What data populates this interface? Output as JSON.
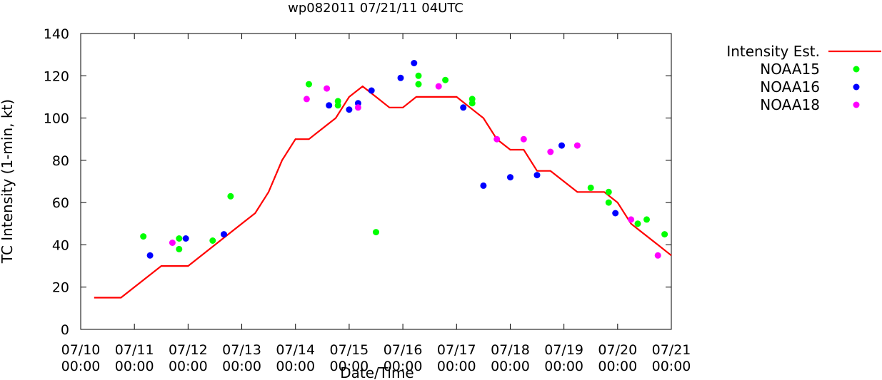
{
  "chart_data": {
    "type": "line",
    "title": "wp082011 07/21/11 04UTC",
    "xlabel": "Date/Time",
    "ylabel": "TC Intensity (1-min, kt)",
    "ylim": [
      0,
      140
    ],
    "yticks": [
      0,
      20,
      40,
      60,
      80,
      100,
      120,
      140
    ],
    "xlim": [
      "07/10 00:00",
      "07/21 00:00"
    ],
    "xticks": [
      {
        "line1": "07/10",
        "line2": "00:00"
      },
      {
        "line1": "07/11",
        "line2": "00:00"
      },
      {
        "line1": "07/12",
        "line2": "00:00"
      },
      {
        "line1": "07/13",
        "line2": "00:00"
      },
      {
        "line1": "07/14",
        "line2": "00:00"
      },
      {
        "line1": "07/15",
        "line2": "00:00"
      },
      {
        "line1": "07/16",
        "line2": "00:00"
      },
      {
        "line1": "07/17",
        "line2": "00:00"
      },
      {
        "line1": "07/18",
        "line2": "00:00"
      },
      {
        "line1": "07/19",
        "line2": "00:00"
      },
      {
        "line1": "07/20",
        "line2": "00:00"
      },
      {
        "line1": "07/21",
        "line2": "00:00"
      }
    ],
    "legend_position": "top-right outside",
    "series": [
      {
        "name": "Intensity Est.",
        "kind": "line",
        "color": "#ff0000",
        "x": [
          "07/10 06:00",
          "07/10 18:00",
          "07/11 12:00",
          "07/12 00:00",
          "07/12 12:00",
          "07/13 00:00",
          "07/13 06:00",
          "07/13 12:00",
          "07/13 18:00",
          "07/14 00:00",
          "07/14 06:00",
          "07/14 12:00",
          "07/14 18:00",
          "07/15 00:00",
          "07/15 06:00",
          "07/15 12:00",
          "07/15 18:00",
          "07/16 00:00",
          "07/16 06:00",
          "07/16 12:00",
          "07/16 18:00",
          "07/17 00:00",
          "07/17 06:00",
          "07/17 12:00",
          "07/17 18:00",
          "07/18 00:00",
          "07/18 06:00",
          "07/18 12:00",
          "07/18 18:00",
          "07/19 00:00",
          "07/19 06:00",
          "07/19 12:00",
          "07/19 18:00",
          "07/20 00:00",
          "07/20 06:00",
          "07/20 12:00",
          "07/20 18:00",
          "07/21 00:00"
        ],
        "y": [
          15,
          15,
          30,
          30,
          40,
          50,
          55,
          65,
          80,
          90,
          90,
          95,
          100,
          110,
          115,
          110,
          105,
          105,
          110,
          110,
          110,
          110,
          105,
          100,
          90,
          85,
          85,
          75,
          75,
          70,
          65,
          65,
          65,
          60,
          50,
          45,
          40,
          35
        ]
      },
      {
        "name": "NOAA15",
        "kind": "points",
        "color": "#00ff00",
        "x": [
          "07/11 04:00",
          "07/11 20:00",
          "07/11 20:00",
          "07/12 11:00",
          "07/12 19:00",
          "07/14 06:00",
          "07/14 19:00",
          "07/14 19:00",
          "07/15 12:00",
          "07/16 07:00",
          "07/16 07:00",
          "07/16 19:00",
          "07/17 07:00",
          "07/17 07:00",
          "07/19 12:00",
          "07/19 20:00",
          "07/19 20:00",
          "07/20 09:00",
          "07/20 13:00",
          "07/20 21:00"
        ],
        "y": [
          44,
          43,
          38,
          42,
          63,
          116,
          108,
          106,
          46,
          120,
          116,
          118,
          109,
          107,
          67,
          65,
          60,
          50,
          52,
          45
        ]
      },
      {
        "name": "NOAA16",
        "kind": "points",
        "color": "#0000ff",
        "x": [
          "07/11 07:00",
          "07/11 23:00",
          "07/12 16:00",
          "07/14 15:00",
          "07/15 00:00",
          "07/15 04:00",
          "07/15 10:00",
          "07/15 23:00",
          "07/16 05:00",
          "07/17 03:00",
          "07/17 12:00",
          "07/18 00:00",
          "07/18 12:00",
          "07/18 23:00",
          "07/19 23:00"
        ],
        "y": [
          35,
          43,
          45,
          106,
          104,
          107,
          113,
          119,
          126,
          105,
          68,
          72,
          73,
          87,
          55
        ]
      },
      {
        "name": "NOAA18",
        "kind": "points",
        "color": "#ff00ff",
        "x": [
          "07/11 17:00",
          "07/14 05:00",
          "07/14 14:00",
          "07/15 04:00",
          "07/16 16:00",
          "07/17 18:00",
          "07/18 06:00",
          "07/18 18:00",
          "07/19 06:00",
          "07/20 06:00",
          "07/20 18:00"
        ],
        "y": [
          41,
          109,
          114,
          105,
          115,
          90,
          90,
          84,
          87,
          52,
          35
        ]
      }
    ]
  }
}
